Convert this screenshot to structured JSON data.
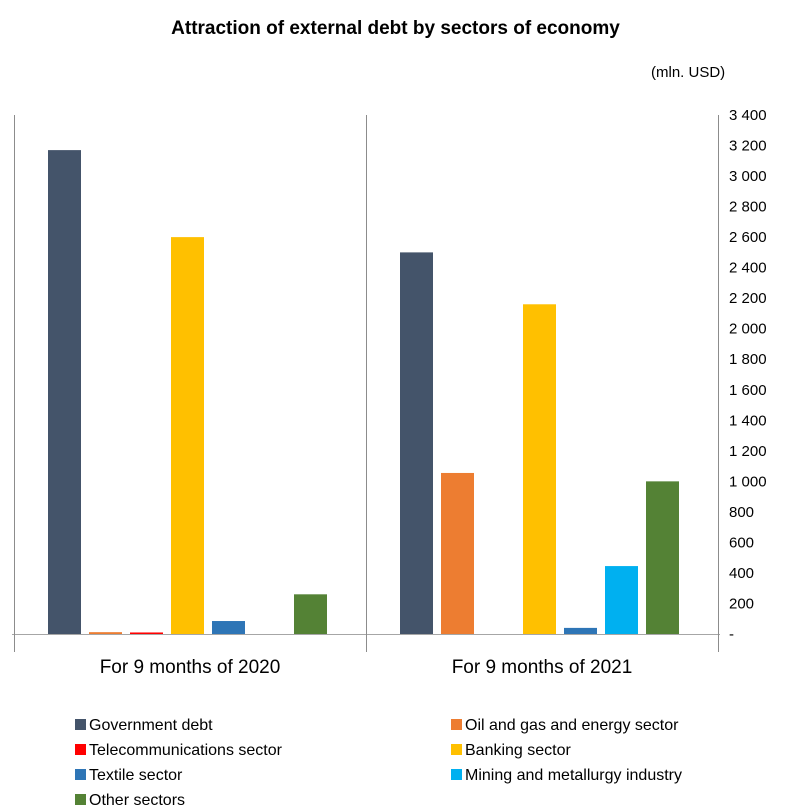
{
  "chart_data": {
    "type": "bar",
    "title": "Attraction of external debt by sectors of economy",
    "unit": "(mln. USD)",
    "categories": [
      "For 9 months of 2020",
      "For 9 months of 2021"
    ],
    "series": [
      {
        "name": "Government debt",
        "color": "#44546a",
        "values": [
          3170,
          2500
        ]
      },
      {
        "name": "Oil and gas and energy sector",
        "color": "#ed7d31",
        "values": [
          12,
          1055
        ]
      },
      {
        "name": "Telecommunications sector",
        "color": "#ff0000",
        "values": [
          10,
          0
        ]
      },
      {
        "name": "Banking sector",
        "color": "#ffc000",
        "values": [
          2600,
          2160
        ]
      },
      {
        "name": "Textile sector",
        "color": "#2e75b6",
        "values": [
          85,
          40
        ]
      },
      {
        "name": "Mining and metallurgy industry",
        "color": "#00b0f0",
        "values": [
          0,
          445
        ]
      },
      {
        "name": "Other sectors",
        "color": "#548235",
        "values": [
          260,
          1000
        ]
      }
    ],
    "yaxis": {
      "ylim": [
        0,
        3400
      ],
      "position": "right",
      "tick_labels": [
        "-",
        "200",
        "400",
        "600",
        "800",
        "1 000",
        "1 200",
        "1 400",
        "1 600",
        "1 800",
        "2 000",
        "2 200",
        "2 400",
        "2 600",
        "2 800",
        "3 000",
        "3 200",
        "3 400"
      ]
    },
    "grid": false,
    "legend_position": "bottom"
  }
}
